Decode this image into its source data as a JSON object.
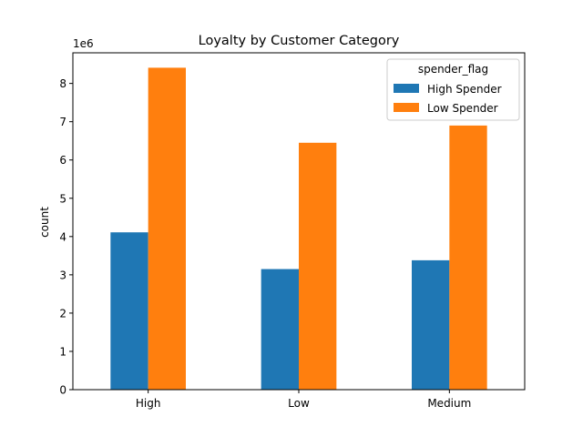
{
  "chart_data": {
    "type": "bar",
    "title": "Loyalty by Customer Category",
    "xlabel": "",
    "ylabel": "count",
    "y_offset_label": "1e6",
    "y_scale": 1000000,
    "ylim": [
      0,
      8800000
    ],
    "yticks": [
      0,
      1000000,
      2000000,
      3000000,
      4000000,
      5000000,
      6000000,
      7000000,
      8000000
    ],
    "ytick_labels": [
      "0",
      "1",
      "2",
      "3",
      "4",
      "5",
      "6",
      "7",
      "8"
    ],
    "categories": [
      "High",
      "Low",
      "Medium"
    ],
    "series": [
      {
        "name": "High Spender",
        "color": "#1f77b4",
        "values": [
          4110000,
          3150000,
          3380000
        ]
      },
      {
        "name": "Low Spender",
        "color": "#ff7f0e",
        "values": [
          8410000,
          6450000,
          6900000
        ]
      }
    ],
    "legend": {
      "title": "spender_flag",
      "placement": "top-right"
    },
    "grid": false
  }
}
